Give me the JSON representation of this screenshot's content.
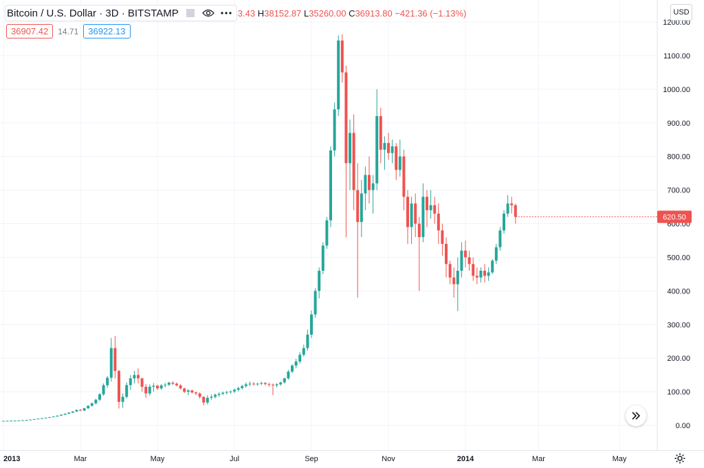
{
  "legend": {
    "symbol": "Bitcoin / U.S. Dollar · 3D · BITSTAMP",
    "ohlc_tail": "3.43",
    "h_label": "H",
    "h": "38152.87",
    "l_label": "L",
    "l": "35260.00",
    "c_label": "C",
    "c": "36913.80",
    "change": "−421.36 (−1.13%)"
  },
  "prices": {
    "sell": "36907.42",
    "spread": "14.71",
    "buy": "36922.13"
  },
  "currency": "USD",
  "last_price_label": "620.50",
  "icons": {
    "eye": "eye-icon",
    "more": "more-icon",
    "box": "compare-box-icon",
    "scroll": "scroll-right-icon",
    "settings": "gear-icon"
  },
  "colors": {
    "up": "#26a69a",
    "down": "#ef5350",
    "grid": "#f0f3fa",
    "text": "#131722"
  },
  "chart_data": {
    "type": "candlestick",
    "title": "Bitcoin / U.S. Dollar",
    "y_ticks": [
      "0.00",
      "100.00",
      "200.00",
      "300.00",
      "400.00",
      "500.00",
      "600.00",
      "700.00",
      "800.00",
      "900.00",
      "1000.00",
      "1100.00",
      "1200.00"
    ],
    "ylim": [
      0,
      1200
    ],
    "x_ticks": [
      "2013",
      "Mar",
      "May",
      "Jul",
      "Sep",
      "Nov",
      "2014",
      "Mar",
      "May"
    ],
    "x_tick_index": [
      0,
      20,
      40,
      60,
      80,
      100,
      120,
      139,
      160
    ],
    "last_price": 620.5,
    "candles": [
      [
        13.3,
        13.6,
        13.0,
        13.5
      ],
      [
        13.5,
        13.8,
        13.2,
        13.7
      ],
      [
        13.7,
        14.1,
        13.5,
        14.0
      ],
      [
        14.0,
        14.5,
        13.9,
        14.3
      ],
      [
        14.3,
        14.9,
        14.1,
        14.8
      ],
      [
        14.8,
        15.6,
        14.6,
        15.4
      ],
      [
        15.4,
        16.5,
        15.2,
        16.3
      ],
      [
        16.3,
        17.6,
        16.0,
        17.3
      ],
      [
        17.3,
        18.9,
        17.0,
        18.6
      ],
      [
        18.6,
        20.3,
        18.4,
        20.0
      ],
      [
        20.0,
        21.9,
        19.8,
        21.5
      ],
      [
        21.5,
        23.3,
        21.2,
        22.9
      ],
      [
        22.9,
        25.0,
        22.5,
        24.7
      ],
      [
        24.7,
        27.0,
        24.2,
        26.5
      ],
      [
        26.5,
        29.5,
        26.0,
        29.0
      ],
      [
        29.0,
        32.5,
        28.4,
        31.8
      ],
      [
        31.8,
        35.5,
        31.0,
        34.6
      ],
      [
        34.6,
        39.0,
        33.9,
        38.0
      ],
      [
        38.0,
        42.5,
        36.8,
        41.3
      ],
      [
        41.3,
        47.0,
        40.2,
        46.1
      ],
      [
        46.1,
        48.9,
        42.0,
        44.1
      ],
      [
        44.1,
        52.0,
        43.0,
        50.9
      ],
      [
        50.9,
        60.0,
        49.0,
        58.3
      ],
      [
        58.3,
        68.0,
        56.0,
        65.7
      ],
      [
        65.7,
        79.0,
        62.0,
        76.2
      ],
      [
        76.2,
        96.0,
        72.0,
        92.5
      ],
      [
        92.5,
        125.0,
        88.0,
        119.5
      ],
      [
        119.5,
        147.0,
        112.0,
        141.7
      ],
      [
        141.7,
        260.0,
        130.0,
        230.0
      ],
      [
        230.0,
        266.0,
        140.0,
        162.0
      ],
      [
        162.0,
        165.0,
        50.0,
        70.0
      ],
      [
        70.0,
        95.0,
        52.0,
        85.0
      ],
      [
        85.0,
        128.0,
        80.0,
        120.0
      ],
      [
        120.0,
        150.0,
        105.0,
        140.0
      ],
      [
        140.0,
        162.0,
        125.0,
        150.0
      ],
      [
        150.0,
        170.0,
        125.0,
        140.0
      ],
      [
        140.0,
        142.0,
        100.0,
        115.0
      ],
      [
        115.0,
        123.0,
        82.0,
        95.0
      ],
      [
        95.0,
        122.0,
        88.0,
        115.0
      ],
      [
        115.0,
        126.0,
        100.0,
        118.0
      ],
      [
        118.0,
        121.0,
        105.0,
        110.0
      ],
      [
        110.0,
        123.0,
        106.0,
        119.0
      ],
      [
        119.0,
        126.0,
        113.0,
        121.0
      ],
      [
        121.0,
        130.0,
        117.0,
        127.0
      ],
      [
        127.0,
        131.0,
        120.0,
        124.0
      ],
      [
        124.0,
        128.0,
        116.0,
        119.0
      ],
      [
        119.0,
        123.0,
        107.0,
        110.0
      ],
      [
        110.0,
        112.0,
        96.0,
        100.0
      ],
      [
        100.0,
        108.0,
        90.0,
        104.0
      ],
      [
        104.0,
        106.0,
        95.0,
        98.0
      ],
      [
        98.0,
        101.0,
        90.0,
        95.0
      ],
      [
        95.0,
        98.0,
        80.0,
        85.0
      ],
      [
        85.0,
        86.0,
        60.0,
        68.0
      ],
      [
        68.0,
        90.0,
        62.0,
        82.0
      ],
      [
        82.0,
        92.0,
        76.0,
        85.0
      ],
      [
        85.0,
        95.0,
        80.0,
        91.0
      ],
      [
        91.0,
        98.0,
        85.0,
        94.0
      ],
      [
        94.0,
        101.0,
        90.0,
        97.0
      ],
      [
        97.0,
        103.0,
        92.0,
        99.0
      ],
      [
        99.0,
        104.0,
        94.0,
        101.0
      ],
      [
        101.0,
        110.0,
        96.0,
        106.0
      ],
      [
        106.0,
        115.0,
        101.0,
        111.0
      ],
      [
        111.0,
        121.0,
        107.0,
        117.0
      ],
      [
        117.0,
        128.0,
        112.0,
        122.0
      ],
      [
        122.0,
        131.0,
        117.0,
        124.0
      ],
      [
        124.0,
        129.0,
        119.0,
        123.0
      ],
      [
        123.0,
        127.0,
        118.0,
        124.0
      ],
      [
        124.0,
        130.0,
        120.0,
        126.0
      ],
      [
        126.0,
        129.0,
        119.0,
        123.0
      ],
      [
        123.0,
        127.0,
        115.0,
        121.0
      ],
      [
        121.0,
        125.0,
        90.0,
        119.0
      ],
      [
        119.0,
        126.0,
        113.0,
        122.0
      ],
      [
        122.0,
        130.0,
        118.0,
        128.0
      ],
      [
        128.0,
        142.0,
        124.0,
        140.0
      ],
      [
        140.0,
        165.0,
        136.0,
        160.0
      ],
      [
        160.0,
        182.0,
        155.0,
        178.0
      ],
      [
        178.0,
        198.0,
        170.0,
        190.0
      ],
      [
        190.0,
        218.0,
        184.0,
        210.0
      ],
      [
        210.0,
        240.0,
        205.0,
        230.0
      ],
      [
        230.0,
        285.0,
        222.0,
        270.0
      ],
      [
        270.0,
        342.0,
        260.0,
        330.0
      ],
      [
        330.0,
        408.0,
        320.0,
        400.0
      ],
      [
        400.0,
        470.0,
        378.0,
        460.0
      ],
      [
        460.0,
        545.0,
        450.0,
        535.0
      ],
      [
        535.0,
        620.0,
        525.0,
        610.0
      ],
      [
        610.0,
        830.0,
        590.0,
        818.0
      ],
      [
        818.0,
        960.0,
        800.0,
        940.0
      ],
      [
        940.0,
        1160.0,
        920.0,
        1145.0
      ],
      [
        1145.0,
        1163.0,
        1020.0,
        1050.0
      ],
      [
        1050.0,
        1070.0,
        560.0,
        780.0
      ],
      [
        780.0,
        910.0,
        700.0,
        870.0
      ],
      [
        870.0,
        925.0,
        640.0,
        700.0
      ],
      [
        700.0,
        780.0,
        380.0,
        605.0
      ],
      [
        605.0,
        730.0,
        560.0,
        690.0
      ],
      [
        690.0,
        770.0,
        640.0,
        745.0
      ],
      [
        745.0,
        800.0,
        660.0,
        700.0
      ],
      [
        700.0,
        745.0,
        630.0,
        720.0
      ],
      [
        720.0,
        1000.0,
        700.0,
        920.0
      ],
      [
        920.0,
        945.0,
        780.0,
        820.0
      ],
      [
        820.0,
        860.0,
        760.0,
        840.0
      ],
      [
        840.0,
        870.0,
        790.0,
        810.0
      ],
      [
        810.0,
        850.0,
        780.0,
        830.0
      ],
      [
        830.0,
        840.0,
        730.0,
        760.0
      ],
      [
        760.0,
        850.0,
        740.0,
        800.0
      ],
      [
        800.0,
        820.0,
        640.0,
        680.0
      ],
      [
        680.0,
        700.0,
        540.0,
        590.0
      ],
      [
        590.0,
        680.0,
        540.0,
        660.0
      ],
      [
        660.0,
        690.0,
        560.0,
        600.0
      ],
      [
        600.0,
        620.0,
        400.0,
        560.0
      ],
      [
        560.0,
        720.0,
        545.0,
        680.0
      ],
      [
        680.0,
        700.0,
        590.0,
        640.0
      ],
      [
        640.0,
        700.0,
        615.0,
        655.0
      ],
      [
        655.0,
        680.0,
        600.0,
        630.0
      ],
      [
        630.0,
        660.0,
        540.0,
        580.0
      ],
      [
        580.0,
        600.0,
        505.0,
        540.0
      ],
      [
        540.0,
        560.0,
        440.0,
        480.0
      ],
      [
        480.0,
        490.0,
        420.0,
        440.0
      ],
      [
        440.0,
        470.0,
        380.0,
        420.0
      ],
      [
        420.0,
        500.0,
        340.0,
        460.0
      ],
      [
        460.0,
        545.0,
        440.0,
        520.0
      ],
      [
        520.0,
        550.0,
        470.0,
        500.0
      ],
      [
        500.0,
        520.0,
        460.0,
        480.0
      ],
      [
        480.0,
        500.0,
        430.0,
        445.0
      ],
      [
        445.0,
        470.0,
        420.0,
        440.0
      ],
      [
        440.0,
        470.0,
        425.0,
        460.0
      ],
      [
        460.0,
        480.0,
        425.0,
        445.0
      ],
      [
        445.0,
        470.0,
        430.0,
        455.0
      ],
      [
        455.0,
        495.0,
        450.0,
        490.0
      ],
      [
        490.0,
        540.0,
        480.0,
        530.0
      ],
      [
        530.0,
        590.0,
        520.0,
        580.0
      ],
      [
        580.0,
        640.0,
        570.0,
        630.0
      ],
      [
        630.0,
        685.0,
        620.0,
        660.0
      ],
      [
        660.0,
        680.0,
        630.0,
        655.0
      ],
      [
        655.0,
        660.0,
        600.0,
        620.5
      ]
    ]
  }
}
